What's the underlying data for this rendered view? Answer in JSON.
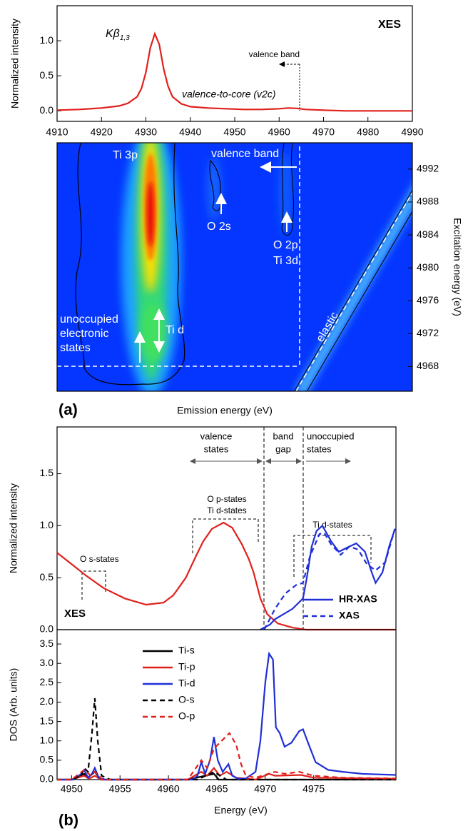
{
  "chart_data": [
    {
      "type": "line",
      "xlim": [
        4910,
        4990
      ],
      "ylim": [
        -0.15,
        1.5
      ],
      "xticks": [
        4910,
        4920,
        4930,
        4940,
        4950,
        4960,
        4970,
        4980,
        4990
      ],
      "yticks": [
        {
          "value": 0,
          "label": "0.0"
        },
        0.5,
        {
          "value": 1,
          "label": "1.0"
        }
      ],
      "ylabel": "Normalized intensity",
      "peak_label": {
        "main": "Kβ",
        "sub": "1,3"
      },
      "annotations": [
        "XES",
        "valence band",
        "valence-to-core (v2c)"
      ],
      "series": [
        {
          "color": "#e0201b",
          "x": [
            4910,
            4915,
            4920,
            4924,
            4926,
            4928,
            4929,
            4930,
            4931,
            4932,
            4933,
            4934,
            4935,
            4936,
            4938,
            4940,
            4944,
            4948,
            4952,
            4956,
            4960,
            4962,
            4964,
            4966,
            4970,
            4975,
            4980,
            4985,
            4990
          ],
          "values": [
            0.01,
            0.02,
            0.04,
            0.07,
            0.11,
            0.2,
            0.32,
            0.55,
            0.9,
            1.1,
            0.95,
            0.6,
            0.35,
            0.2,
            0.1,
            0.06,
            0.04,
            0.03,
            0.02,
            0.02,
            0.03,
            0.04,
            0.035,
            0.02,
            0.01,
            0,
            0,
            0,
            0
          ]
        }
      ]
    },
    {
      "type": "heatmap",
      "xlim": [
        4910,
        4990
      ],
      "ylim": [
        4965,
        4995.2
      ],
      "yticks": [
        4968,
        4972,
        4976,
        4980,
        4984,
        4988,
        4992
      ],
      "xlabel": "Emission energy (eV)",
      "ylabel": "Excitation energy (eV)",
      "panel_label": "(a)",
      "annotations": [
        "Ti 3p",
        "valence band",
        "O 2s",
        "O 2p",
        "Ti 3d",
        "unoccupied",
        "electronic",
        "states",
        "Ti d",
        "elastic"
      ]
    },
    {
      "type": "line",
      "xlim": [
        4948.5,
        4983.5
      ],
      "ylim": [
        0,
        1.95
      ],
      "yticks": [
        {
          "value": 0,
          "label": "0.0"
        },
        0.5,
        {
          "value": 1,
          "label": "1.0"
        },
        1.5
      ],
      "ylabel": "Normalized intensity",
      "legend": "lower right",
      "annotations": [
        "valence",
        "states",
        "band",
        "gap",
        "unoccupied",
        "states",
        "O p-states",
        "Ti d-states",
        "Ti d-states",
        "O s-states",
        "XES"
      ],
      "series": [
        {
          "color": "#e0201b",
          "dash": false,
          "x": [
            4948.5,
            4950,
            4951.5,
            4953.3,
            4955.5,
            4957.7,
            4959.5,
            4960.5,
            4961.8,
            4962.8,
            4963.6,
            4964.5,
            4965.7,
            4966.6,
            4967.6,
            4968.3,
            4968.8,
            4969.5,
            4970.2,
            4971.3,
            4972.8,
            4974.2,
            4976,
            4980,
            4983.5
          ],
          "values": [
            0.74,
            0.63,
            0.52,
            0.4,
            0.3,
            0.24,
            0.26,
            0.33,
            0.5,
            0.7,
            0.85,
            0.97,
            1.03,
            0.98,
            0.82,
            0.68,
            0.55,
            0.3,
            0.15,
            0.06,
            0.02,
            0,
            0,
            0,
            0
          ]
        },
        {
          "name": "HR-XAS",
          "color": "#1f2fd6",
          "dash": false,
          "x": [
            4969.5,
            4970.5,
            4971,
            4972.8,
            4973.9,
            4974.3,
            4974.8,
            4975.3,
            4975.9,
            4976.8,
            4977.6,
            4978.7,
            4979.4,
            4980.3,
            4981,
            4981.4,
            4982.1,
            4982.8,
            4983.4
          ],
          "values": [
            0,
            0.05,
            0.1,
            0.2,
            0.3,
            0.5,
            0.8,
            0.95,
            1.0,
            0.85,
            0.75,
            0.8,
            0.83,
            0.75,
            0.55,
            0.45,
            0.55,
            0.8,
            0.97
          ]
        },
        {
          "name": "XAS",
          "color": "#1f2fd6",
          "dash": true,
          "x": [
            4969.9,
            4971,
            4972.1,
            4973.2,
            4973.9,
            4974.6,
            4975.6,
            4976.1,
            4976.8,
            4977.8,
            4978.7,
            4979.6,
            4980.5,
            4981.4,
            4982.4,
            4983.4
          ],
          "values": [
            0,
            0.2,
            0.35,
            0.43,
            0.45,
            0.7,
            0.92,
            0.93,
            0.82,
            0.72,
            0.8,
            0.77,
            0.63,
            0.57,
            0.65,
            0.97
          ]
        }
      ]
    },
    {
      "type": "line",
      "xlim": [
        4948.5,
        4983.5
      ],
      "ylim": [
        0,
        3.87
      ],
      "xticks": [
        4950,
        4955,
        4960,
        4965,
        4970,
        4975
      ],
      "yticks": [
        {
          "value": 0,
          "label": "0.0"
        },
        0.5,
        {
          "value": 1,
          "label": "1.0"
        },
        1.5,
        {
          "value": 2,
          "label": "2.0"
        },
        2.5,
        {
          "value": 3,
          "label": "3.0"
        },
        3.5
      ],
      "xlabel": "Energy (eV)",
      "ylabel": "DOS (Arb. units)",
      "panel_label": "(b)",
      "legend": "upper left",
      "series": [
        {
          "name": "Ti-s",
          "color": "#000000",
          "dash": false,
          "x": [
            4948.5,
            4950,
            4951.3,
            4951.7,
            4952.4,
            4953,
            4962,
            4964.7,
            4965.2,
            4983.5
          ],
          "values": [
            0,
            0,
            0.15,
            0.05,
            0.2,
            0,
            0,
            0.15,
            0,
            0
          ]
        },
        {
          "name": "Ti-p",
          "color": "#e0201b",
          "dash": false,
          "x": [
            4948.5,
            4950,
            4951.3,
            4951.8,
            4952.4,
            4953,
            4962,
            4963.4,
            4964,
            4964.7,
            4965.3,
            4966,
            4967,
            4969,
            4970.4,
            4971,
            4973.7,
            4975,
            4983.5
          ],
          "values": [
            0,
            0,
            0.1,
            0.02,
            0.1,
            0,
            0,
            0.2,
            0.1,
            0.3,
            0.1,
            0.2,
            0.05,
            0,
            0.15,
            0.1,
            0.12,
            0.05,
            0.02
          ]
        },
        {
          "name": "Ti-d",
          "color": "#1f2fd6",
          "dash": false,
          "x": [
            4948.5,
            4950.2,
            4951,
            4951.3,
            4951.7,
            4952.1,
            4952.4,
            4952.8,
            4953.5,
            4962.5,
            4963,
            4963.4,
            4963.8,
            4964.3,
            4964.7,
            4965.1,
            4965.6,
            4966.2,
            4966.6,
            4967.2,
            4968,
            4969,
            4969.5,
            4970,
            4970.4,
            4970.8,
            4971.1,
            4971.5,
            4972,
            4972.7,
            4973.5,
            4973.9,
            4974.5,
            4975.2,
            4976.5,
            4978,
            4980,
            4983.5
          ],
          "values": [
            0,
            0,
            0.15,
            0.25,
            0.05,
            0.15,
            0.3,
            0.05,
            0,
            0,
            0.1,
            0.45,
            0.15,
            0.5,
            1.1,
            0.5,
            0.2,
            0.4,
            0.1,
            0.02,
            0.03,
            0.2,
            1.0,
            2.5,
            3.25,
            3.1,
            1.35,
            1.2,
            0.85,
            0.95,
            1.25,
            1.3,
            0.9,
            0.45,
            0.25,
            0.2,
            0.15,
            0.12
          ]
        },
        {
          "name": "O-s",
          "color": "#000000",
          "dash": true,
          "x": [
            4948.5,
            4950,
            4951,
            4951.3,
            4951.7,
            4952.1,
            4952.4,
            4952.7,
            4953.1,
            4954,
            4963,
            4964.7,
            4966,
            4983.5
          ],
          "values": [
            0,
            0,
            0.1,
            0.3,
            0.2,
            1.2,
            2.1,
            1.0,
            0.1,
            0,
            0,
            0.2,
            0,
            0
          ]
        },
        {
          "name": "O-p",
          "color": "#e0201b",
          "dash": true,
          "x": [
            4948.5,
            4950,
            4951.3,
            4952,
            4952.4,
            4953.2,
            4962,
            4963.4,
            4964,
            4964.7,
            4965.5,
            4966.3,
            4967,
            4967.5,
            4968,
            4969,
            4971,
            4972,
            4973.5,
            4975,
            4978,
            4983.5
          ],
          "values": [
            0,
            0,
            0.25,
            0.1,
            0.2,
            0,
            0,
            0.5,
            0.3,
            0.8,
            1.0,
            1.2,
            0.9,
            0.4,
            0.1,
            0.05,
            0.2,
            0.15,
            0.2,
            0.1,
            0.05,
            0.03
          ]
        }
      ]
    }
  ]
}
